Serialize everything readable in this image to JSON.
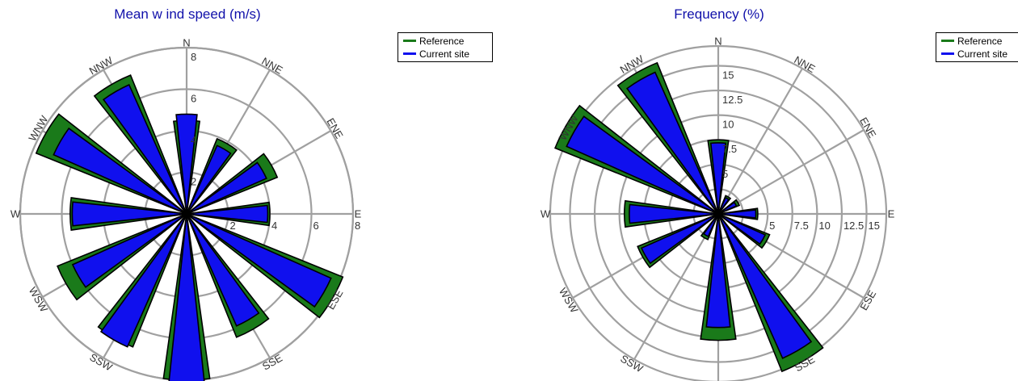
{
  "colors": {
    "reference": "#1a7a1a",
    "current": "#1010ee",
    "title": "#1010aa",
    "grid": "#a0a0a0"
  },
  "directions": [
    "N",
    "NNE",
    "ENE",
    "E",
    "ESE",
    "SSE",
    "S",
    "SSW",
    "WSW",
    "W",
    "WNW",
    "NNW"
  ],
  "chart_data": [
    {
      "type": "polar-bar",
      "title": "Mean w ind speed (m/s)",
      "legend": {
        "position": "top-right",
        "entries": [
          "Reference",
          "Current site"
        ]
      },
      "rmax": 8,
      "ring_step": 2,
      "ring_labels": [
        {
          "value": 2,
          "text": "2"
        },
        {
          "value": 4,
          "text": "4"
        },
        {
          "value": 6,
          "text": "6"
        },
        {
          "value": 8,
          "text": "8"
        }
      ],
      "series": [
        {
          "name": "Reference",
          "values": [
            4.5,
            3.9,
            4.7,
            4.0,
            8.1,
            6.4,
            8.0,
            6.9,
            6.7,
            5.6,
            7.8,
            7.2
          ]
        },
        {
          "name": "Current site",
          "values": [
            4.8,
            3.6,
            4.2,
            3.9,
            7.6,
            5.9,
            8.3,
            7.0,
            6.0,
            5.5,
            7.0,
            6.8
          ]
        }
      ]
    },
    {
      "type": "polar-bar",
      "title": "Frequency (%)",
      "legend": {
        "position": "top-right",
        "entries": [
          "Reference",
          "Current site"
        ]
      },
      "rmax": 17,
      "ring_step": 2.5,
      "ring_labels": [
        {
          "value": 5,
          "text": "5"
        },
        {
          "value": 7.5,
          "text": "7.5"
        },
        {
          "value": 10,
          "text": "10"
        },
        {
          "value": 12.5,
          "text": "12.5"
        },
        {
          "value": 15,
          "text": "15"
        }
      ],
      "series": [
        {
          "name": "Reference",
          "values": [
            7.5,
            2.0,
            2.3,
            4.0,
            5.6,
            17.2,
            12.8,
            2.8,
            8.8,
            9.5,
            17.8,
            16.5
          ]
        },
        {
          "name": "Current site",
          "values": [
            7.2,
            1.8,
            2.0,
            3.8,
            5.2,
            16.0,
            11.5,
            2.5,
            8.5,
            9.0,
            16.8,
            15.7
          ]
        }
      ]
    }
  ]
}
